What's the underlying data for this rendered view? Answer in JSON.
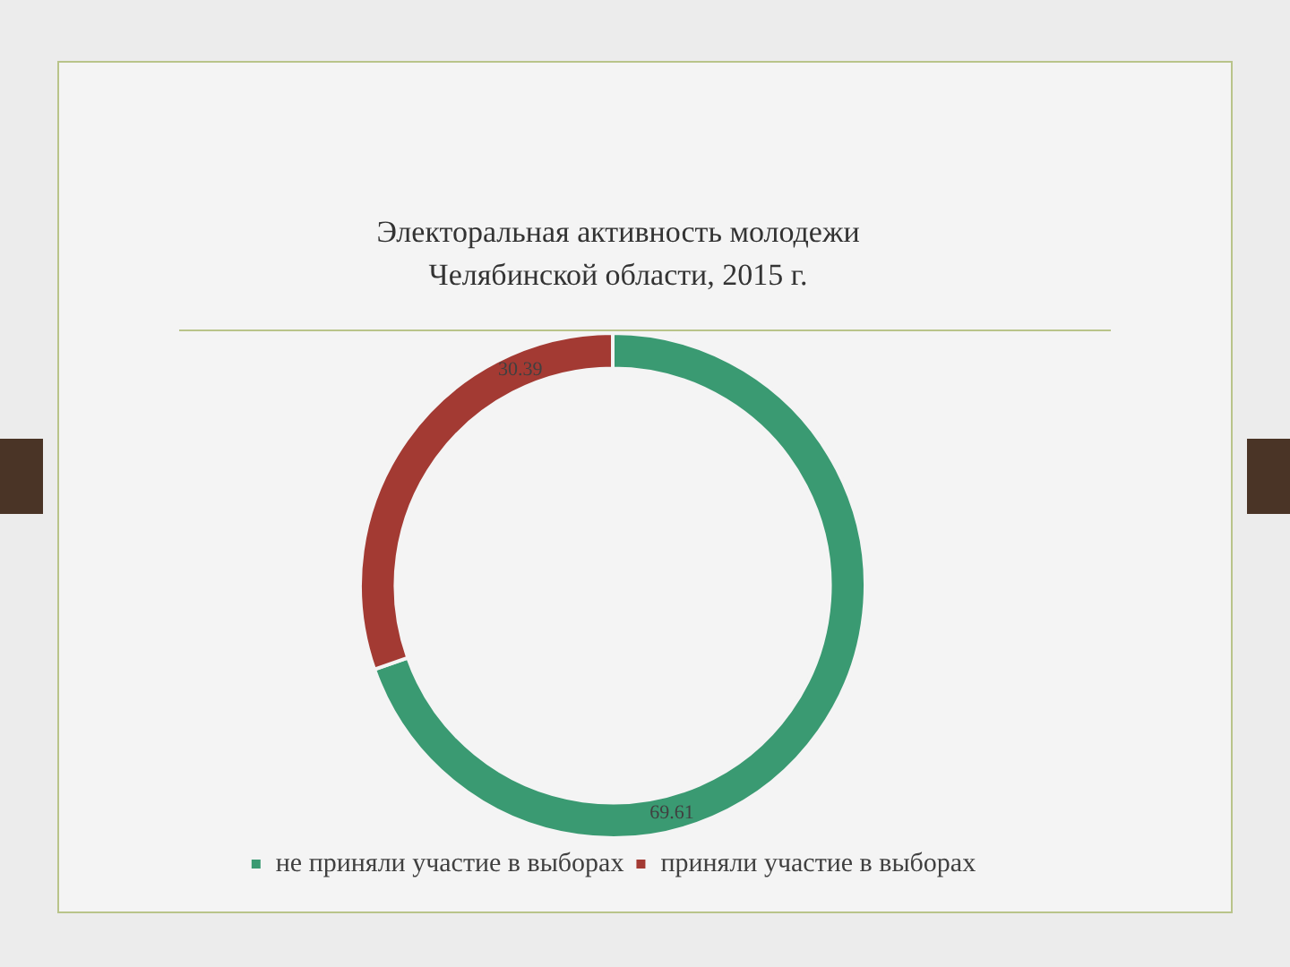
{
  "chart_data": {
    "type": "donut",
    "title": "Электоральная активность молодежи Челябинской области, 2015 г.",
    "categories": [
      "не приняли участие в выборах",
      "приняли участие в выборах"
    ],
    "values": [
      69.61,
      30.39
    ],
    "colors": [
      "#3a9a72",
      "#a33a33"
    ],
    "data_labels": true,
    "legend": "bottom"
  }
}
